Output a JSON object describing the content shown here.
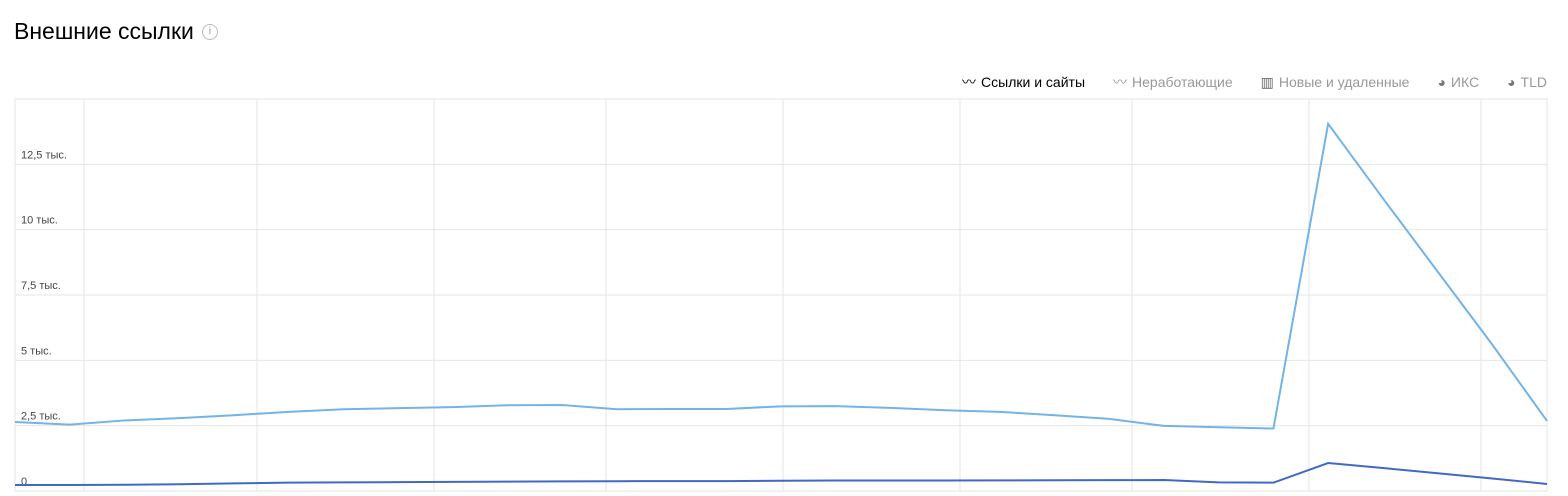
{
  "title": "Внешние ссылки",
  "info_icon": "info-icon",
  "tabs": [
    {
      "label": "Ссылки и сайты",
      "icon": "line-chart-icon",
      "active": true
    },
    {
      "label": "Неработающие",
      "icon": "line-chart-icon",
      "active": false
    },
    {
      "label": "Новые и удаленные",
      "icon": "bar-chart-icon",
      "active": false
    },
    {
      "label": "ИКС",
      "icon": "pie-chart-icon",
      "active": false
    },
    {
      "label": "TLD",
      "icon": "pie-chart-icon",
      "active": false
    }
  ],
  "chart_data": {
    "type": "line",
    "ylim": [
      0,
      15000
    ],
    "grid": true,
    "y_ticks": [
      {
        "v": 0,
        "label": "0"
      },
      {
        "v": 2500,
        "label": "2,5 тыс."
      },
      {
        "v": 5000,
        "label": "5 тыс."
      },
      {
        "v": 7500,
        "label": "7,5 тыс."
      },
      {
        "v": 10000,
        "label": "10 тыс."
      },
      {
        "v": 12500,
        "label": "12,5 тыс."
      }
    ],
    "x": [
      0,
      1,
      2,
      3,
      4,
      5,
      6,
      7,
      8,
      9,
      10,
      11,
      12,
      13,
      14,
      15,
      16,
      17,
      18,
      19,
      20,
      21,
      22,
      23,
      24,
      25,
      26,
      27,
      28
    ],
    "series": [
      {
        "color": "#72b4e8",
        "values": [
          2640,
          2540,
          2700,
          2790,
          2900,
          3030,
          3130,
          3170,
          3210,
          3280,
          3290,
          3130,
          3140,
          3140,
          3240,
          3250,
          3180,
          3090,
          3030,
          2900,
          2760,
          2490,
          2440,
          2390,
          14050,
          11200,
          8400,
          5600,
          2680
        ]
      },
      {
        "color": "#4169c4",
        "values": [
          230,
          230,
          240,
          260,
          290,
          320,
          330,
          340,
          350,
          360,
          370,
          375,
          380,
          380,
          390,
          400,
          400,
          400,
          405,
          410,
          415,
          420,
          330,
          320,
          1070,
          880,
          680,
          480,
          270
        ]
      }
    ]
  }
}
